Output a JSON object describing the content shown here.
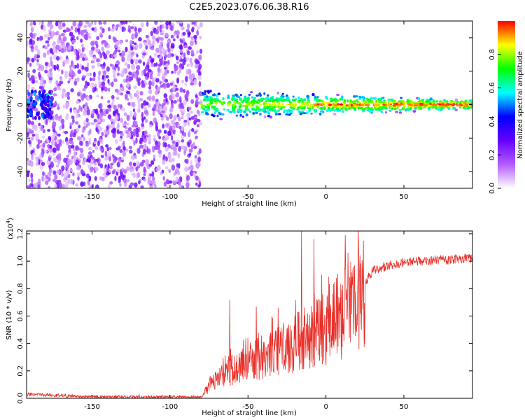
{
  "figure_title": "C2E5.2023.076.06.38.R16",
  "chart_data": [
    {
      "type": "heatmap",
      "title": "C2E5.2023.076.06.38.R16",
      "xlabel": "Height of straight line (km)",
      "ylabel": "Frequency (Hz)",
      "xlim": [
        -192,
        94
      ],
      "ylim": [
        -50,
        50
      ],
      "x_ticks": [
        -150,
        -100,
        -50,
        0,
        50
      ],
      "y_ticks": [
        -40,
        -20,
        0,
        20,
        40
      ],
      "colorbar": {
        "label": "Normalized spectral amplitude",
        "range": [
          0.0,
          1.0
        ],
        "ticks": [
          0.0,
          0.2,
          0.4,
          0.6,
          0.8
        ],
        "colormap": [
          "#ffffff",
          "#b35cff",
          "#6600ff",
          "#0000ff",
          "#00ffff",
          "#00ff00",
          "#ffff00",
          "#ff0000"
        ]
      },
      "regions": [
        {
          "name": "noise",
          "x_range": [
            -192,
            -80
          ],
          "freq_range": [
            -50,
            50
          ],
          "amplitude": [
            0.05,
            0.3
          ]
        },
        {
          "name": "signal",
          "x_range": [
            -80,
            94
          ],
          "freq_center": 0,
          "freq_width_start": 10,
          "freq_width_end": 3,
          "amplitude": [
            0.4,
            1.0
          ]
        }
      ]
    },
    {
      "type": "line",
      "xlabel": "Height of straight line (km)",
      "ylabel": "SNR (10 * v/v)",
      "y_multiplier": "(x10",
      "y_multiplier_exp": "4",
      "y_multiplier_close": ")",
      "xlim": [
        -192,
        94
      ],
      "ylim": [
        0,
        1.22
      ],
      "x_ticks": [
        -150,
        -100,
        -50,
        0,
        50
      ],
      "y_ticks": [
        0.0,
        0.2,
        0.4,
        0.6,
        0.8,
        1.0,
        1.2
      ],
      "line_color": "#e8302a",
      "series_envelope": {
        "x": [
          -192,
          -150,
          -100,
          -80,
          -76,
          -70,
          -60,
          -50,
          -40,
          -30,
          -20,
          -10,
          0,
          10,
          20,
          25,
          30,
          40,
          50,
          60,
          70,
          80,
          90,
          94
        ],
        "y": [
          0.03,
          0.01,
          0.01,
          0.01,
          0.07,
          0.14,
          0.2,
          0.26,
          0.3,
          0.34,
          0.4,
          0.46,
          0.52,
          0.6,
          0.72,
          0.84,
          0.93,
          0.97,
          0.99,
          1.0,
          1.01,
          1.01,
          1.02,
          1.02
        ]
      },
      "spikes": [
        {
          "x": -62,
          "y": 0.72
        },
        {
          "x": -45,
          "y": 0.67
        },
        {
          "x": -31,
          "y": 0.66
        },
        {
          "x": -16,
          "y": 1.22
        },
        {
          "x": -8,
          "y": 1.16
        },
        {
          "x": -3,
          "y": 0.9
        }
      ]
    }
  ]
}
